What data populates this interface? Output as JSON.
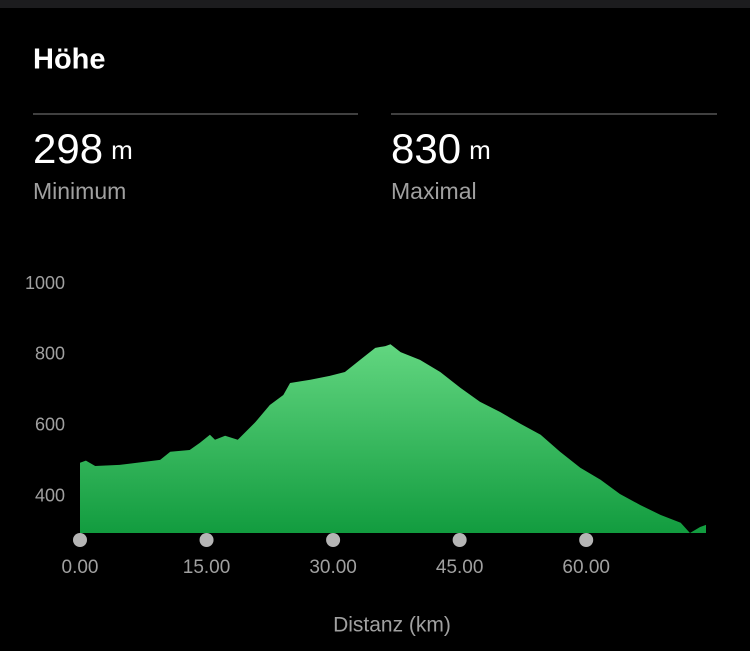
{
  "header": {
    "title": "Höhe"
  },
  "stats": [
    {
      "value": 298,
      "unit": "m",
      "label": "Minimum"
    },
    {
      "value": 830,
      "unit": "m",
      "label": "Maximal"
    }
  ],
  "chart_data": {
    "type": "area",
    "xlabel": "Distanz (km)",
    "x": [
      0,
      0.7,
      1.8,
      4.7,
      9.5,
      10.7,
      13,
      14.2,
      15.4,
      16,
      17.2,
      18.7,
      20.8,
      22.5,
      24.1,
      24.9,
      27.3,
      29.6,
      31.4,
      33.2,
      35,
      36.2,
      36.8,
      38,
      40.3,
      42.7,
      45.1,
      47.4,
      49.8,
      52.2,
      54.6,
      56.9,
      59.3,
      61.7,
      64,
      66.4,
      68.8,
      71.2,
      72.3,
      73.5,
      74.2
    ],
    "values": [
      496,
      502,
      487,
      490,
      504,
      527,
      532,
      552,
      575,
      561,
      572,
      561,
      611,
      659,
      687,
      721,
      730,
      741,
      752,
      786,
      820,
      825,
      830,
      808,
      786,
      752,
      707,
      668,
      639,
      606,
      575,
      527,
      482,
      448,
      408,
      377,
      349,
      327,
      298,
      315,
      321
    ],
    "color": "#129c3f",
    "xlim": [
      0,
      74.2
    ],
    "ylim": [
      298,
      1000
    ],
    "xticks": [
      {
        "value": 0,
        "label": "0.00"
      },
      {
        "value": 15,
        "label": "15.00"
      },
      {
        "value": 30,
        "label": "30.00"
      },
      {
        "value": 45,
        "label": "45.00"
      },
      {
        "value": 60,
        "label": "60.00"
      }
    ],
    "yticks": [
      400,
      600,
      800,
      1000
    ]
  }
}
